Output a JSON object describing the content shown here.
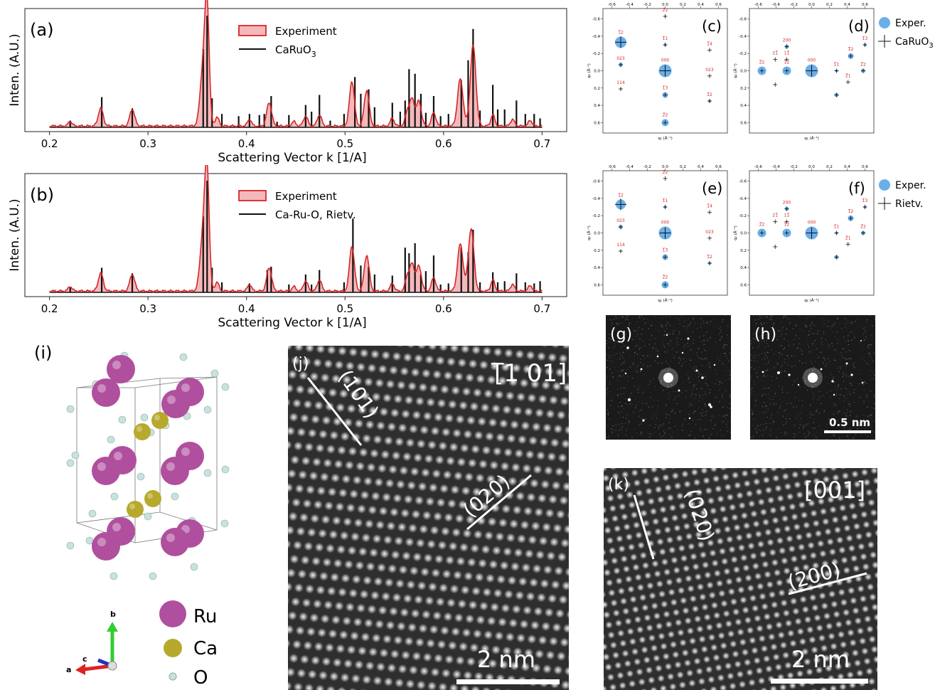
{
  "colors": {
    "experiment_fill": "#f4b8bb",
    "experiment_line": "#d62728",
    "sim_line": "#111111",
    "exper_dot": "#6aaee8",
    "hkl_label": "#d62728",
    "ru": "#b04f9e",
    "ca": "#b7a92b",
    "o": "#c8e2dc"
  },
  "panel_a": {
    "label": "(a)",
    "ylabel": "Inten. (A.U.)",
    "xlabel": "Scattering Vector k [1/A]",
    "legend": {
      "exp": "Experiment",
      "sim_main": "CaRuO",
      "sim_sub": "3"
    }
  },
  "panel_b": {
    "label": "(b)",
    "ylabel": "Inten. (A.U.)",
    "xlabel": "Scattering Vector k [1/A]",
    "legend": {
      "exp": "Experiment",
      "sim": "Ca-Ru-O, Rietv."
    }
  },
  "chart_data": [
    {
      "type": "line",
      "panel": "a",
      "xlabel": "Scattering Vector k [1/A]",
      "ylabel": "Inten. (A.U.)",
      "xlim": [
        0.175,
        0.725
      ],
      "ylim": [
        0,
        1.05
      ],
      "xticks": [
        "0.2",
        "0.3",
        "0.4",
        "0.5",
        "0.6",
        "0.7"
      ],
      "series": [
        {
          "name": "Experiment",
          "kind": "profile",
          "peaks": [
            [
              0.221,
              0.04,
              0.002
            ],
            [
              0.252,
              0.16,
              0.0025
            ],
            [
              0.284,
              0.15,
              0.0025
            ],
            [
              0.356,
              0.52,
              0.003
            ],
            [
              0.36,
              0.96,
              0.0022
            ],
            [
              0.37,
              0.08,
              0.002
            ],
            [
              0.403,
              0.06,
              0.002
            ],
            [
              0.423,
              0.21,
              0.0025
            ],
            [
              0.448,
              0.04,
              0.002
            ],
            [
              0.46,
              0.09,
              0.0022
            ],
            [
              0.474,
              0.1,
              0.0022
            ],
            [
              0.507,
              0.4,
              0.0025
            ],
            [
              0.522,
              0.32,
              0.0025
            ],
            [
              0.548,
              0.07,
              0.002
            ],
            [
              0.563,
              0.12,
              0.002
            ],
            [
              0.568,
              0.24,
              0.0025
            ],
            [
              0.575,
              0.22,
              0.0025
            ],
            [
              0.59,
              0.12,
              0.0022
            ],
            [
              0.617,
              0.42,
              0.0028
            ],
            [
              0.63,
              0.72,
              0.0028
            ],
            [
              0.65,
              0.1,
              0.002
            ],
            [
              0.67,
              0.06,
              0.002
            ],
            [
              0.688,
              0.05,
              0.002
            ]
          ]
        },
        {
          "name": "CaRuO3",
          "kind": "sticks",
          "sticks": [
            [
              0.221,
              0.06
            ],
            [
              0.253,
              0.27
            ],
            [
              0.284,
              0.17
            ],
            [
              0.356,
              0.7
            ],
            [
              0.36,
              1.0
            ],
            [
              0.365,
              0.26
            ],
            [
              0.375,
              0.12
            ],
            [
              0.392,
              0.1
            ],
            [
              0.403,
              0.12
            ],
            [
              0.413,
              0.11
            ],
            [
              0.418,
              0.12
            ],
            [
              0.425,
              0.28
            ],
            [
              0.431,
              0.05
            ],
            [
              0.443,
              0.11
            ],
            [
              0.46,
              0.2
            ],
            [
              0.466,
              0.14
            ],
            [
              0.474,
              0.29
            ],
            [
              0.485,
              0.06
            ],
            [
              0.499,
              0.12
            ],
            [
              0.51,
              0.45
            ],
            [
              0.516,
              0.3
            ],
            [
              0.524,
              0.34
            ],
            [
              0.53,
              0.18
            ],
            [
              0.548,
              0.22
            ],
            [
              0.556,
              0.14
            ],
            [
              0.561,
              0.24
            ],
            [
              0.565,
              0.52
            ],
            [
              0.571,
              0.48
            ],
            [
              0.577,
              0.3
            ],
            [
              0.582,
              0.13
            ],
            [
              0.59,
              0.28
            ],
            [
              0.597,
              0.1
            ],
            [
              0.605,
              0.12
            ],
            [
              0.618,
              0.42
            ],
            [
              0.625,
              0.6
            ],
            [
              0.63,
              0.88
            ],
            [
              0.637,
              0.15
            ],
            [
              0.65,
              0.38
            ],
            [
              0.655,
              0.16
            ],
            [
              0.662,
              0.16
            ],
            [
              0.674,
              0.24
            ],
            [
              0.683,
              0.12
            ],
            [
              0.692,
              0.12
            ],
            [
              0.698,
              0.08
            ]
          ]
        }
      ]
    },
    {
      "type": "line",
      "panel": "b",
      "xlabel": "Scattering Vector k [1/A]",
      "ylabel": "Inten. (A.U.)",
      "xlim": [
        0.175,
        0.725
      ],
      "ylim": [
        0,
        1.05
      ],
      "xticks": [
        "0.2",
        "0.3",
        "0.4",
        "0.5",
        "0.6",
        "0.7"
      ],
      "series": [
        {
          "name": "Experiment",
          "kind": "profile",
          "peaks": [
            [
              0.221,
              0.04,
              0.002
            ],
            [
              0.252,
              0.16,
              0.0025
            ],
            [
              0.284,
              0.15,
              0.0025
            ],
            [
              0.356,
              0.52,
              0.003
            ],
            [
              0.36,
              0.96,
              0.0022
            ],
            [
              0.37,
              0.08,
              0.002
            ],
            [
              0.403,
              0.06,
              0.002
            ],
            [
              0.423,
              0.21,
              0.0025
            ],
            [
              0.448,
              0.04,
              0.002
            ],
            [
              0.46,
              0.09,
              0.0022
            ],
            [
              0.474,
              0.1,
              0.0022
            ],
            [
              0.507,
              0.4,
              0.0025
            ],
            [
              0.522,
              0.32,
              0.0025
            ],
            [
              0.548,
              0.07,
              0.002
            ],
            [
              0.563,
              0.12,
              0.002
            ],
            [
              0.568,
              0.24,
              0.0025
            ],
            [
              0.575,
              0.22,
              0.0025
            ],
            [
              0.59,
              0.12,
              0.0022
            ],
            [
              0.617,
              0.42,
              0.0028
            ],
            [
              0.628,
              0.56,
              0.0028
            ],
            [
              0.65,
              0.1,
              0.002
            ],
            [
              0.67,
              0.06,
              0.002
            ],
            [
              0.688,
              0.05,
              0.002
            ]
          ]
        },
        {
          "name": "Ca-Ru-O, Rietv.",
          "kind": "sticks",
          "sticks": [
            [
              0.221,
              0.05
            ],
            [
              0.253,
              0.22
            ],
            [
              0.284,
              0.17
            ],
            [
              0.356,
              0.68
            ],
            [
              0.36,
              1.0
            ],
            [
              0.365,
              0.22
            ],
            [
              0.375,
              0.09
            ],
            [
              0.403,
              0.08
            ],
            [
              0.421,
              0.2
            ],
            [
              0.425,
              0.23
            ],
            [
              0.443,
              0.07
            ],
            [
              0.46,
              0.16
            ],
            [
              0.466,
              0.07
            ],
            [
              0.474,
              0.2
            ],
            [
              0.499,
              0.09
            ],
            [
              0.508,
              0.66
            ],
            [
              0.516,
              0.24
            ],
            [
              0.524,
              0.23
            ],
            [
              0.53,
              0.16
            ],
            [
              0.548,
              0.15
            ],
            [
              0.561,
              0.4
            ],
            [
              0.565,
              0.35
            ],
            [
              0.571,
              0.44
            ],
            [
              0.577,
              0.16
            ],
            [
              0.582,
              0.19
            ],
            [
              0.59,
              0.33
            ],
            [
              0.597,
              0.07
            ],
            [
              0.605,
              0.08
            ],
            [
              0.618,
              0.4
            ],
            [
              0.625,
              0.36
            ],
            [
              0.63,
              0.56
            ],
            [
              0.637,
              0.09
            ],
            [
              0.65,
              0.18
            ],
            [
              0.655,
              0.09
            ],
            [
              0.662,
              0.1
            ],
            [
              0.674,
              0.17
            ],
            [
              0.683,
              0.09
            ],
            [
              0.692,
              0.08
            ],
            [
              0.698,
              0.1
            ]
          ]
        }
      ]
    },
    {
      "type": "scatter",
      "panel": "c",
      "xlabel": "q₁ (Å⁻¹)",
      "ylabel": "q₂ (Å⁻¹)",
      "xlim": [
        -0.7,
        0.7
      ],
      "ylim": [
        0.72,
        -0.72
      ],
      "ticks": [
        "-0.6",
        "-0.4",
        "-0.2",
        "0.0",
        "0.2",
        "0.4",
        "0.6"
      ],
      "points": [
        {
          "x": -0.5,
          "y": -0.33,
          "r": 8,
          "hkl": "1̅2"
        },
        {
          "x": -0.5,
          "y": -0.07,
          "r": 3,
          "hkl": "023"
        },
        {
          "x": -0.5,
          "y": 0.21,
          "r": 1,
          "hkl": "114"
        },
        {
          "x": 0.0,
          "y": -0.63,
          "r": 1,
          "hkl": "2̅2"
        },
        {
          "x": 0.0,
          "y": -0.3,
          "r": 2,
          "hkl": "1̅1"
        },
        {
          "x": 0.0,
          "y": 0.0,
          "r": 9,
          "hkl": "000"
        },
        {
          "x": 0.0,
          "y": 0.28,
          "r": 4,
          "hkl": "1̅3"
        },
        {
          "x": 0.0,
          "y": 0.6,
          "r": 5,
          "hkl": "2̅2"
        },
        {
          "x": 0.5,
          "y": -0.24,
          "r": 0,
          "hkl": "1̅4"
        },
        {
          "x": 0.5,
          "y": 0.06,
          "r": 0,
          "hkl": "023"
        },
        {
          "x": 0.5,
          "y": 0.35,
          "r": 2,
          "hkl": "1̅2"
        }
      ]
    },
    {
      "type": "scatter",
      "panel": "d",
      "xlabel": "q₁ (Å⁻¹)",
      "ylabel": "q₂ (Å⁻¹)",
      "xlim": [
        -0.7,
        0.7
      ],
      "ylim": [
        0.72,
        -0.72
      ],
      "ticks": [
        "-0.6",
        "-0.4",
        "-0.2",
        "0.0",
        "0.2",
        "0.4",
        "0.6"
      ],
      "legend": {
        "exp": "Exper.",
        "sim_main": "CaRuO",
        "sim_sub": "3"
      },
      "points": [
        {
          "x": -0.56,
          "y": 0.0,
          "r": 6,
          "hkl": "2̅2"
        },
        {
          "x": -0.41,
          "y": 0.16,
          "r": 0,
          "hkl": ""
        },
        {
          "x": -0.41,
          "y": -0.13,
          "r": 0,
          "hkl": "21̅"
        },
        {
          "x": -0.28,
          "y": 0.0,
          "r": 6,
          "hkl": "1̅2"
        },
        {
          "x": -0.28,
          "y": -0.28,
          "r": 3,
          "hkl": "200"
        },
        {
          "x": -0.28,
          "y": -0.13,
          "r": 0,
          "hkl": "11̅"
        },
        {
          "x": 0.0,
          "y": 0.0,
          "r": 9,
          "hkl": "000"
        },
        {
          "x": 0.28,
          "y": 0.28,
          "r": 3,
          "hkl": ""
        },
        {
          "x": 0.28,
          "y": 0.0,
          "r": 2,
          "hkl": "1̅1"
        },
        {
          "x": 0.41,
          "y": 0.13,
          "r": 0,
          "hkl": "2̅1"
        },
        {
          "x": 0.44,
          "y": -0.17,
          "r": 4,
          "hkl": "1̅2"
        },
        {
          "x": 0.58,
          "y": 0.0,
          "r": 3,
          "hkl": "2̅2"
        },
        {
          "x": 0.6,
          "y": -0.3,
          "r": 2,
          "hkl": "1̅3"
        }
      ]
    },
    {
      "type": "scatter",
      "panel": "e",
      "xlabel": "q₁ (Å⁻¹)",
      "ylabel": "q₂ (Å⁻¹)",
      "xlim": [
        -0.7,
        0.7
      ],
      "ylim": [
        0.72,
        -0.72
      ],
      "ticks": [
        "-0.6",
        "-0.4",
        "-0.2",
        "0.0",
        "0.2",
        "0.4",
        "0.6"
      ],
      "points": [
        {
          "x": -0.5,
          "y": -0.33,
          "r": 7,
          "hkl": "1̅2"
        },
        {
          "x": -0.5,
          "y": -0.07,
          "r": 3,
          "hkl": "023"
        },
        {
          "x": -0.5,
          "y": 0.21,
          "r": 1,
          "hkl": "114"
        },
        {
          "x": 0.0,
          "y": -0.63,
          "r": 0,
          "hkl": "2̅2"
        },
        {
          "x": 0.0,
          "y": -0.3,
          "r": 2,
          "hkl": "1̅1"
        },
        {
          "x": 0.0,
          "y": 0.0,
          "r": 9,
          "hkl": "000"
        },
        {
          "x": 0.0,
          "y": 0.28,
          "r": 4,
          "hkl": "1̅3"
        },
        {
          "x": 0.0,
          "y": 0.6,
          "r": 5,
          "hkl": "2̅2"
        },
        {
          "x": 0.5,
          "y": -0.24,
          "r": 0,
          "hkl": "1̅4"
        },
        {
          "x": 0.5,
          "y": 0.06,
          "r": 0,
          "hkl": "023"
        },
        {
          "x": 0.5,
          "y": 0.35,
          "r": 2,
          "hkl": "1̅2"
        }
      ]
    },
    {
      "type": "scatter",
      "panel": "f",
      "xlabel": "q₁ (Å⁻¹)",
      "ylabel": "q₂ (Å⁻¹)",
      "xlim": [
        -0.7,
        0.7
      ],
      "ylim": [
        0.72,
        -0.72
      ],
      "ticks": [
        "-0.6",
        "-0.4",
        "-0.2",
        "0.0",
        "0.2",
        "0.4",
        "0.6"
      ],
      "legend": {
        "exp": "Exper.",
        "sim": "Rietv."
      },
      "points": [
        {
          "x": -0.56,
          "y": 0.0,
          "r": 6,
          "hkl": "2̅2"
        },
        {
          "x": -0.41,
          "y": 0.16,
          "r": 0,
          "hkl": ""
        },
        {
          "x": -0.41,
          "y": -0.13,
          "r": 0,
          "hkl": "21̅"
        },
        {
          "x": -0.28,
          "y": 0.0,
          "r": 6,
          "hkl": "1̅2"
        },
        {
          "x": -0.28,
          "y": -0.28,
          "r": 3,
          "hkl": "200"
        },
        {
          "x": -0.28,
          "y": -0.13,
          "r": 0,
          "hkl": "11̅"
        },
        {
          "x": 0.0,
          "y": 0.0,
          "r": 9,
          "hkl": "000"
        },
        {
          "x": 0.28,
          "y": 0.28,
          "r": 3,
          "hkl": ""
        },
        {
          "x": 0.28,
          "y": 0.0,
          "r": 2,
          "hkl": "1̅1"
        },
        {
          "x": 0.41,
          "y": 0.13,
          "r": 0,
          "hkl": "2̅1"
        },
        {
          "x": 0.44,
          "y": -0.17,
          "r": 4,
          "hkl": "1̅2"
        },
        {
          "x": 0.58,
          "y": 0.0,
          "r": 3,
          "hkl": "2̅2"
        },
        {
          "x": 0.6,
          "y": -0.3,
          "r": 2,
          "hkl": "1̅3"
        }
      ]
    }
  ],
  "panel_labels": {
    "c": "(c)",
    "d": "(d)",
    "e": "(e)",
    "f": "(f)",
    "g": "(g)",
    "h": "(h)",
    "i": "(i)",
    "j": "(j)",
    "k": "(k)"
  },
  "fft": {
    "scalebar": "0.5 nm"
  },
  "stem_j": {
    "zone": "[̅1 01]",
    "zone_bar": "1",
    "zone_rest": "01]",
    "zone_open": "[",
    "plane1": "(101)",
    "plane2": "(020)",
    "scalebar": "2 nm"
  },
  "stem_k": {
    "zone": "[001]",
    "plane1": "(020)",
    "plane2": "(200)",
    "scalebar": "2 nm"
  },
  "crystal": {
    "legend": [
      {
        "label": "Ru"
      },
      {
        "label": "Ca"
      },
      {
        "label": "O"
      }
    ],
    "axes": {
      "a": "a",
      "b": "b",
      "c": "c"
    }
  }
}
